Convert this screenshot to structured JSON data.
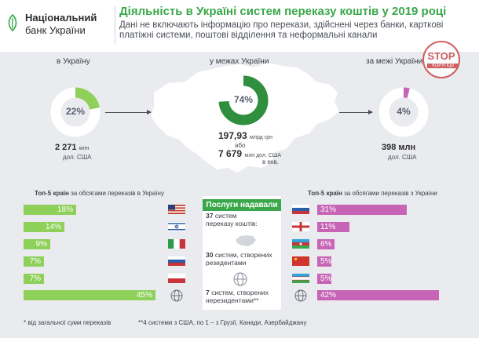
{
  "logo": {
    "line1": "Національний",
    "line2": "банк України"
  },
  "title": "Діяльність в Україні систем переказу коштів у 2019 році",
  "subtitle": "Дані не включають інформацію про перекази, здійснені через банки, карткові платіжні системи, поштові відділення та неформальні канали",
  "sections": {
    "to_ukraine": {
      "label": "в Україну",
      "percent_text": "22%",
      "fraction": 0.22,
      "amount": "2 271",
      "amount_unit": "млн",
      "unit": "дол. США"
    },
    "within": {
      "label": "у межах України",
      "percent_text": "74%",
      "fraction": 0.74,
      "amount": "197,93",
      "amount_unit": "млрд грн",
      "or_text": "або",
      "amount2": "7 679",
      "amount2_unit": "млн дол. США",
      "equiv": "в екв."
    },
    "from_ukraine": {
      "label": "за межі України",
      "percent_text": "4%",
      "fraction": 0.04,
      "amount": "398 млн",
      "unit": "дол. США"
    }
  },
  "stamp": {
    "main": "STOP",
    "sub": "КОРУПЦІЇ"
  },
  "left_box": {
    "heading_bold": "Топ-5 країн",
    "heading_rest": "за обсягами переказів в Україну",
    "bars": [
      {
        "value": 18,
        "label": "18%",
        "flag": "usa-flag"
      },
      {
        "value": 14,
        "label": "14%",
        "flag": "israel-flag"
      },
      {
        "value": 9,
        "label": "9%",
        "flag": "italy-flag"
      },
      {
        "value": 7,
        "label": "7%",
        "flag": "russia-flag"
      },
      {
        "value": 7,
        "label": "7%",
        "flag": "poland-flag"
      },
      {
        "value": 45,
        "label": "45%",
        "flag": "globe-icon"
      }
    ]
  },
  "right_box": {
    "heading_bold": "Топ-5 країн",
    "heading_rest": "за обсягами переказів з України",
    "bars": [
      {
        "value": 31,
        "label": "31%",
        "flag": "russia-flag"
      },
      {
        "value": 11,
        "label": "11%",
        "flag": "georgia-flag"
      },
      {
        "value": 6,
        "label": "6%",
        "flag": "azerbaijan-flag"
      },
      {
        "value": 5,
        "label": "5%",
        "flag": "china-flag"
      },
      {
        "value": 5,
        "label": "5%",
        "flag": "uzbekistan-flag"
      },
      {
        "value": 42,
        "label": "42%",
        "flag": "globe-icon"
      }
    ]
  },
  "services": {
    "title": "Послуги надавали",
    "total_num": "37",
    "total_text": "систем переказу коштів:",
    "residents_num": "30",
    "residents_text": "систем, створених резидентами",
    "nonresidents_num": "7",
    "nonresidents_text": "систем, створених нерезидентами**"
  },
  "footnotes": {
    "f1": "* від загальної суми переказів",
    "f2": "**4 системи з США, по 1 – з Грузії, Канади, Азербайджану"
  },
  "colors": {
    "green": "#3aa84a",
    "light_green": "#8fd05a",
    "pink": "#c764b5",
    "gray": "#e9ebef"
  }
}
